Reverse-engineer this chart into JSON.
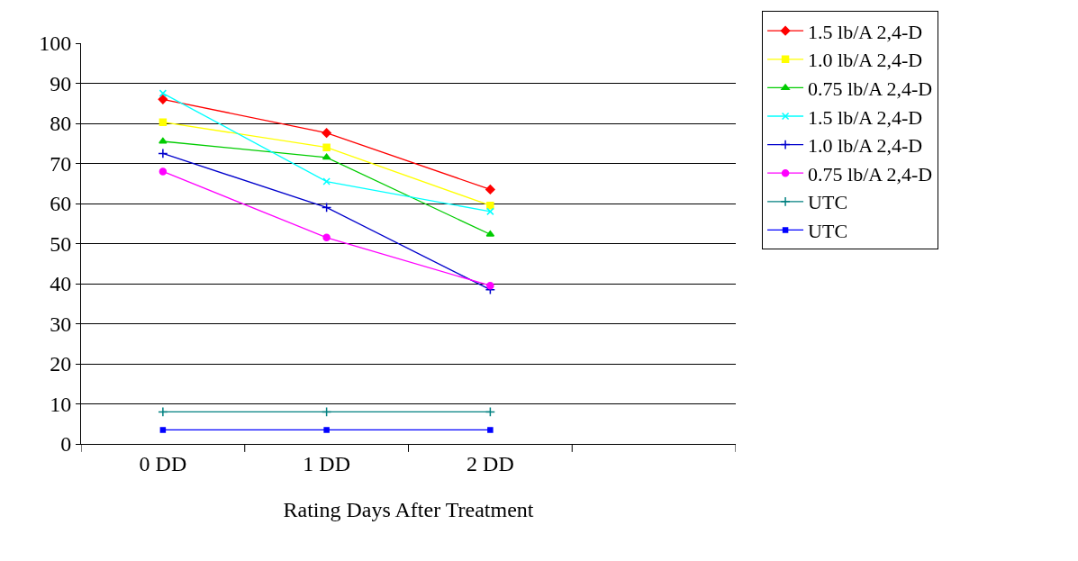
{
  "chart_data": {
    "type": "line",
    "xlabel": "Rating Days After Treatment",
    "categories": [
      "0 DD",
      "1 DD",
      "2 DD",
      null
    ],
    "ylim": [
      0,
      100
    ],
    "yticks": [
      0,
      10,
      20,
      30,
      40,
      50,
      60,
      70,
      80,
      90,
      100
    ],
    "grid": "y",
    "legend": "right",
    "line_style": "solid",
    "series": [
      {
        "name": "1.5 lb/A 2,4-D",
        "color": "#ff0000",
        "marker": "diamond",
        "values": [
          86,
          77.6,
          63.5,
          null
        ]
      },
      {
        "name": "1.0 lb/A 2,4-D",
        "color": "#ffff00",
        "marker": "square",
        "values": [
          80.3,
          74,
          59.5,
          null
        ]
      },
      {
        "name": "0.75 lb/A 2,4-D",
        "color": "#00cc00",
        "marker": "triangle",
        "values": [
          75.5,
          71.5,
          52.3,
          null
        ]
      },
      {
        "name": "1.5 lb/A 2,4-D",
        "color": "#00ffff",
        "marker": "x",
        "values": [
          87.5,
          65.5,
          58,
          null
        ]
      },
      {
        "name": "1.0 lb/A 2,4-D",
        "color": "#0000cc",
        "marker": "cross",
        "values": [
          72.5,
          59,
          38.5,
          null
        ]
      },
      {
        "name": "0.75 lb/A 2,4-D",
        "color": "#ff00ff",
        "marker": "circle",
        "values": [
          68,
          51.5,
          39.5,
          null
        ]
      },
      {
        "name": "UTC",
        "color": "#008080",
        "marker": "cross",
        "values": [
          8,
          8,
          8,
          null
        ]
      },
      {
        "name": "UTC",
        "color": "#0000ff",
        "marker": "square",
        "values": [
          3.5,
          3.5,
          3.5,
          null
        ]
      }
    ]
  }
}
